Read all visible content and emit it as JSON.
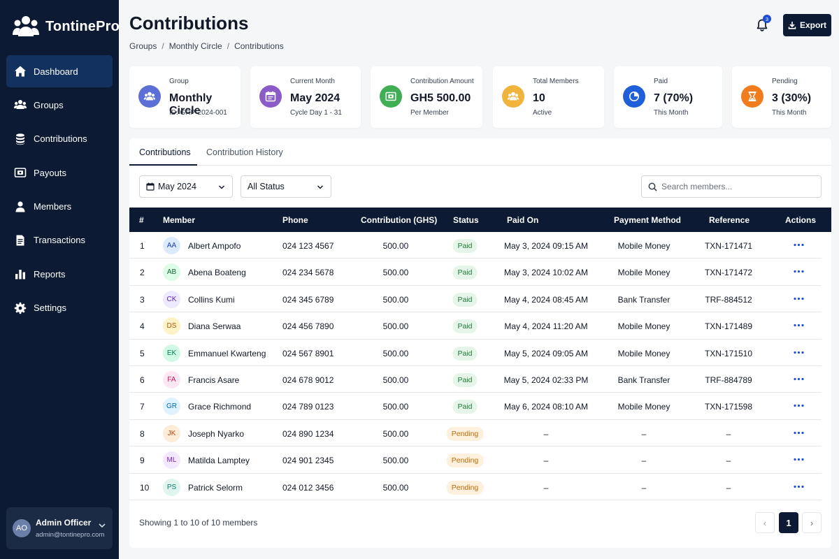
{
  "app": {
    "name": "TontinePro"
  },
  "sidebar": {
    "items": [
      {
        "label": "Dashboard",
        "icon": "home-icon",
        "active": true
      },
      {
        "label": "Groups",
        "icon": "users-icon"
      },
      {
        "label": "Contributions",
        "icon": "coins-stack-icon"
      },
      {
        "label": "Payouts",
        "icon": "payout-icon"
      },
      {
        "label": "Members",
        "icon": "user-icon"
      },
      {
        "label": "Transactions",
        "icon": "document-icon"
      },
      {
        "label": "Reports",
        "icon": "bar-chart-icon"
      },
      {
        "label": "Settings",
        "icon": "gear-icon"
      }
    ],
    "user": {
      "initials": "AO",
      "name": "Admin Officer",
      "email": "admin@tontinepro.com"
    }
  },
  "header": {
    "title": "Contributions",
    "breadcrumb": [
      "Groups",
      "Monthly Circle",
      "Contributions"
    ],
    "notification_count": "3",
    "export_label": "Export"
  },
  "stats": [
    {
      "label": "Group",
      "value": "Monthly Circle",
      "sub": "ID: GRP-2024-001",
      "color": "#5b6fd6",
      "icon": "users-icon"
    },
    {
      "label": "Current Month",
      "value": "May 2024",
      "sub": "Cycle Day 1 - 31",
      "color": "#8b5cc7",
      "icon": "calendar-icon"
    },
    {
      "label": "Contribution Amount",
      "value": "GH5 500.00",
      "sub": "Per Member",
      "color": "#3fae55",
      "icon": "cash-icon"
    },
    {
      "label": "Total Members",
      "value": "10",
      "sub": "Active",
      "color": "#f0b43c",
      "icon": "group-icon"
    },
    {
      "label": "Paid",
      "value": "7 (70%)",
      "sub": "This Month",
      "color": "#1f5fd8",
      "icon": "pie-icon"
    },
    {
      "label": "Pending",
      "value": "3 (30%)",
      "sub": "This Month",
      "color": "#f07c1e",
      "icon": "hourglass-icon"
    }
  ],
  "tabs": [
    {
      "label": "Contributions",
      "active": true
    },
    {
      "label": "Contribution History"
    }
  ],
  "filters": {
    "month": "May 2024",
    "status": "All Status",
    "search_placeholder": "Search members..."
  },
  "table": {
    "columns": [
      "#",
      "Member",
      "Phone",
      "Contribution (GHS)",
      "Status",
      "Paid On",
      "Payment Method",
      "Reference",
      "Actions"
    ],
    "rows": [
      {
        "num": "1",
        "initials": "AA",
        "name": "Albert Ampofo",
        "phone": "024 123 4567",
        "amount": "500.00",
        "status": "Paid",
        "paid_on": "May 3, 2024 09:15 AM",
        "method": "Mobile Money",
        "ref": "TXN-171471",
        "av_bg": "#dbeafe",
        "av_fg": "#1e40af"
      },
      {
        "num": "2",
        "initials": "AB",
        "name": "Abena Boateng",
        "phone": "024 234 5678",
        "amount": "500.00",
        "status": "Paid",
        "paid_on": "May 3, 2024 10:02 AM",
        "method": "Mobile Money",
        "ref": "TXN-171472",
        "av_bg": "#dcfce7",
        "av_fg": "#166534"
      },
      {
        "num": "3",
        "initials": "CK",
        "name": "Collins Kumi",
        "phone": "024 345 6789",
        "amount": "500.00",
        "status": "Paid",
        "paid_on": "May 4, 2024 08:45 AM",
        "method": "Bank Transfer",
        "ref": "TRF-884512",
        "av_bg": "#ede9fe",
        "av_fg": "#5b21b6"
      },
      {
        "num": "4",
        "initials": "DS",
        "name": "Diana Serwaa",
        "phone": "024 456 7890",
        "amount": "500.00",
        "status": "Paid",
        "paid_on": "May 4, 2024 11:20 AM",
        "method": "Mobile Money",
        "ref": "TXN-171489",
        "av_bg": "#fef3c7",
        "av_fg": "#b45309"
      },
      {
        "num": "5",
        "initials": "EK",
        "name": "Emmanuel Kwarteng",
        "phone": "024 567 8901",
        "amount": "500.00",
        "status": "Paid",
        "paid_on": "May 5, 2024 09:05 AM",
        "method": "Mobile Money",
        "ref": "TXN-171510",
        "av_bg": "#d1fae5",
        "av_fg": "#047857"
      },
      {
        "num": "6",
        "initials": "FA",
        "name": "Francis Asare",
        "phone": "024 678 9012",
        "amount": "500.00",
        "status": "Paid",
        "paid_on": "May 5, 2024 02:33 PM",
        "method": "Bank Transfer",
        "ref": "TRF-884789",
        "av_bg": "#fce7f3",
        "av_fg": "#be185d"
      },
      {
        "num": "7",
        "initials": "GR",
        "name": "Grace Richmond",
        "phone": "024 789 0123",
        "amount": "500.00",
        "status": "Paid",
        "paid_on": "May 6, 2024 08:10 AM",
        "method": "Mobile Money",
        "ref": "TXN-171598",
        "av_bg": "#e0f2fe",
        "av_fg": "#0369a1"
      },
      {
        "num": "8",
        "initials": "JK",
        "name": "Joseph Nyarko",
        "phone": "024 890 1234",
        "amount": "500.00",
        "status": "Pending",
        "paid_on": "–",
        "method": "–",
        "ref": "–",
        "av_bg": "#fdecd8",
        "av_fg": "#c2410c"
      },
      {
        "num": "9",
        "initials": "ML",
        "name": "Matilda Lamptey",
        "phone": "024 901 2345",
        "amount": "500.00",
        "status": "Pending",
        "paid_on": "–",
        "method": "–",
        "ref": "–",
        "av_bg": "#f3e8ff",
        "av_fg": "#7e22ce"
      },
      {
        "num": "10",
        "initials": "PS",
        "name": "Patrick Selorm",
        "phone": "024 012 3456",
        "amount": "500.00",
        "status": "Pending",
        "paid_on": "–",
        "method": "–",
        "ref": "–",
        "av_bg": "#dff5ee",
        "av_fg": "#0f766e"
      }
    ]
  },
  "pagination": {
    "summary": "Showing 1 to 10 of 10 members",
    "current": "1",
    "prev": "‹",
    "next": "›"
  }
}
